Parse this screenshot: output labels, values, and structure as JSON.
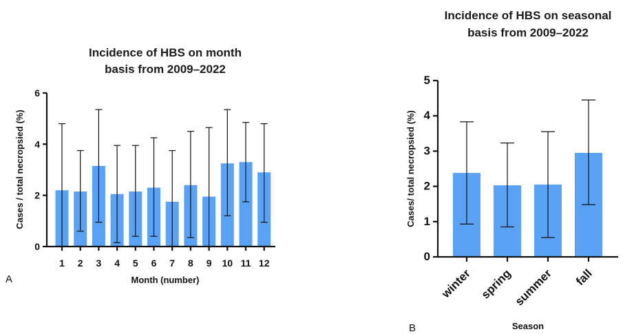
{
  "chart_data": [
    {
      "type": "bar",
      "panel_label": "A",
      "title_lines": [
        "Incidence of HBS on month",
        "basis from 2009–2022"
      ],
      "xlabel": "Month (number)",
      "ylabel": "Cases / total necropsied (%)",
      "categories": [
        "1",
        "2",
        "3",
        "4",
        "5",
        "6",
        "7",
        "8",
        "9",
        "10",
        "11",
        "12"
      ],
      "values": [
        2.2,
        2.15,
        3.15,
        2.05,
        2.15,
        2.3,
        1.75,
        2.4,
        1.95,
        3.25,
        3.3,
        2.9
      ],
      "error_low": [
        0.0,
        0.6,
        0.95,
        0.15,
        0.4,
        0.4,
        0.0,
        0.35,
        0.0,
        1.2,
        1.75,
        0.95
      ],
      "error_high": [
        4.8,
        3.75,
        5.35,
        3.95,
        3.95,
        4.25,
        3.75,
        4.5,
        4.65,
        5.35,
        4.85,
        4.8
      ],
      "ylim": [
        0,
        6
      ],
      "yticks": [
        0,
        2,
        4,
        6
      ],
      "color": "#5aa2f5"
    },
    {
      "type": "bar",
      "panel_label": "B",
      "title_lines": [
        "Incidence of HBS on seasonal",
        "basis from 2009–2022"
      ],
      "xlabel": "Season",
      "ylabel": "Cases/ total necropsied (%)",
      "categories": [
        "winter",
        "spring",
        "summer",
        "fall"
      ],
      "values": [
        2.38,
        2.03,
        2.05,
        2.95
      ],
      "error_low": [
        0.93,
        0.85,
        0.55,
        1.48
      ],
      "error_high": [
        3.83,
        3.23,
        3.55,
        4.45
      ],
      "ylim": [
        0,
        5
      ],
      "yticks": [
        0,
        1,
        2,
        3,
        4,
        5
      ],
      "color": "#5aa2f5"
    }
  ]
}
